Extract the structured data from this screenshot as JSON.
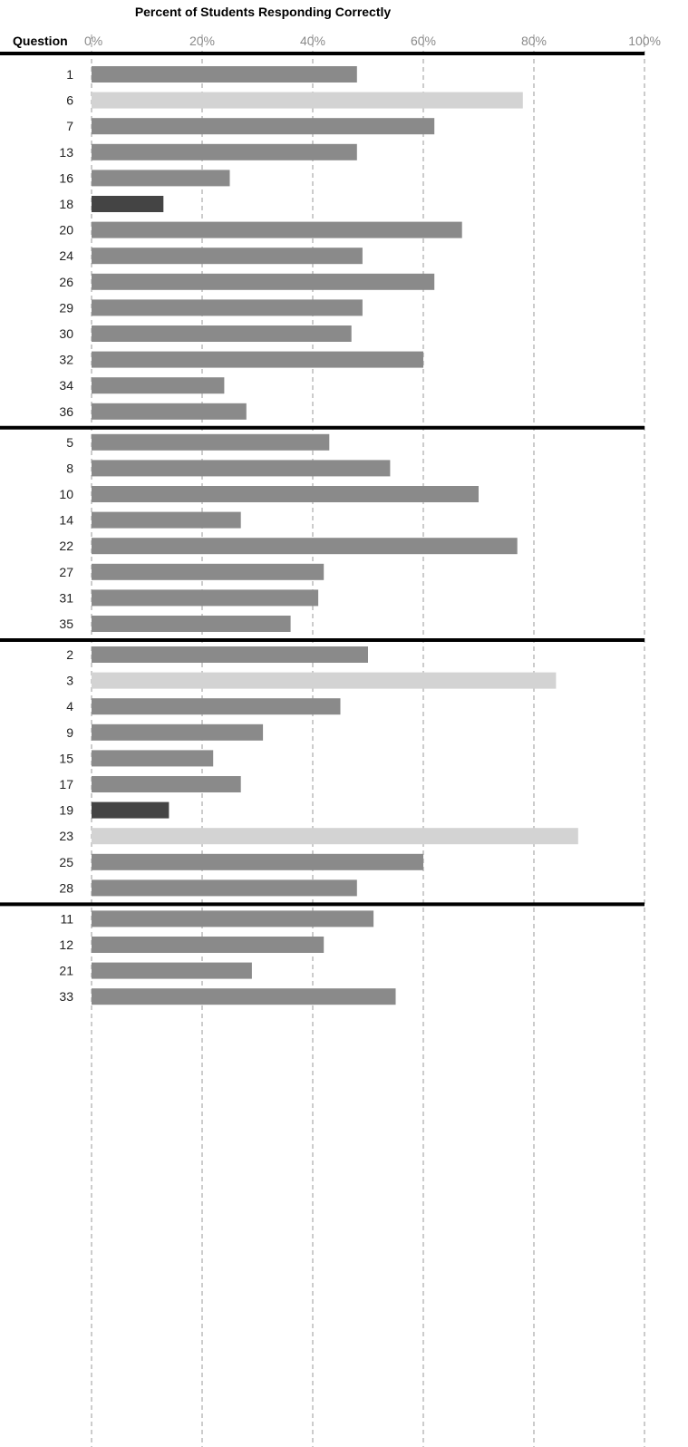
{
  "chart_data": {
    "type": "bar",
    "orientation": "horizontal",
    "title": "Percent of Students Responding Correctly",
    "ylabel": "Question",
    "xlabel": "",
    "xlim": [
      0,
      100
    ],
    "x_ticks": [
      "0%",
      "20%",
      "40%",
      "60%",
      "80%",
      "100%"
    ],
    "x_tick_values": [
      0,
      20,
      40,
      60,
      80,
      100
    ],
    "grid": "vertical dashed",
    "legend": "none",
    "colors": {
      "medium": "#8a8a8a",
      "light": "#d3d3d3",
      "dark": "#444444",
      "separator": "#000000",
      "grid": "#9a9a9a"
    },
    "groups": [
      {
        "categories": [
          "1",
          "6",
          "7",
          "13",
          "16",
          "18",
          "20",
          "24",
          "26",
          "29",
          "30",
          "32",
          "34",
          "36"
        ],
        "values": [
          48,
          78,
          62,
          48,
          25,
          13,
          67,
          49,
          62,
          49,
          47,
          60,
          24,
          28
        ],
        "shades": [
          "medium",
          "light",
          "medium",
          "medium",
          "medium",
          "dark",
          "medium",
          "medium",
          "medium",
          "medium",
          "medium",
          "medium",
          "medium",
          "medium"
        ]
      },
      {
        "categories": [
          "5",
          "8",
          "10",
          "14",
          "22",
          "27",
          "31",
          "35"
        ],
        "values": [
          43,
          54,
          70,
          27,
          77,
          42,
          41,
          36
        ],
        "shades": [
          "medium",
          "medium",
          "medium",
          "medium",
          "medium",
          "medium",
          "medium",
          "medium"
        ]
      },
      {
        "categories": [
          "2",
          "3",
          "4",
          "9",
          "15",
          "17",
          "19",
          "23",
          "25",
          "28"
        ],
        "values": [
          50,
          84,
          45,
          31,
          22,
          27,
          14,
          88,
          60,
          48
        ],
        "shades": [
          "medium",
          "light",
          "medium",
          "medium",
          "medium",
          "medium",
          "dark",
          "light",
          "medium",
          "medium"
        ]
      },
      {
        "categories": [
          "11",
          "12",
          "21",
          "33"
        ],
        "values": [
          51,
          42,
          29,
          55
        ],
        "shades": [
          "medium",
          "medium",
          "medium",
          "medium"
        ]
      }
    ]
  }
}
